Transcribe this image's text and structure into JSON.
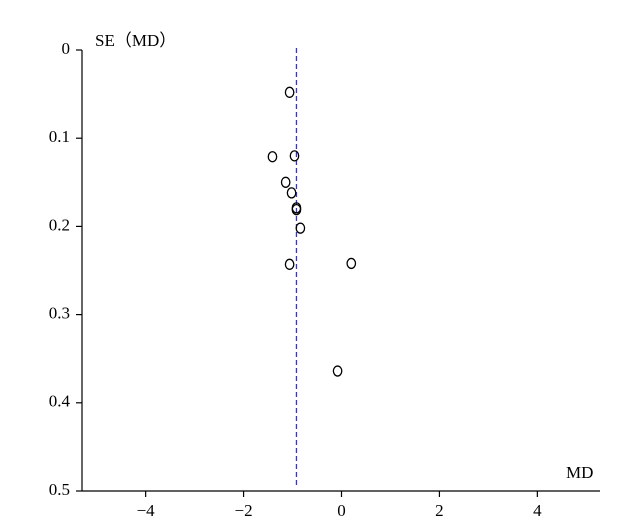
{
  "chart_data": {
    "type": "scatter",
    "ylabel": "SE（MD）",
    "xlabel": "MD",
    "x": [
      -1.06,
      -1.41,
      -0.96,
      -1.14,
      -1.02,
      -0.92,
      -0.92,
      -0.84,
      -1.06,
      0.2,
      -0.08
    ],
    "values": [
      0.048,
      0.121,
      0.12,
      0.15,
      0.162,
      0.179,
      0.181,
      0.202,
      0.243,
      0.242,
      0.364
    ],
    "color": "#000000",
    "reference_x": -0.92,
    "reference_color": "#3a3a9a",
    "xlim": [
      -5.3,
      5.3
    ],
    "ylim": [
      0,
      0.5
    ],
    "y_inverted": true,
    "xticks": [
      {
        "value": -4,
        "label": "−4"
      },
      {
        "value": -2,
        "label": "−2"
      },
      0,
      2,
      4
    ],
    "yticks": [
      0,
      0.1,
      0.2,
      0.3,
      0.4,
      0.5
    ]
  }
}
